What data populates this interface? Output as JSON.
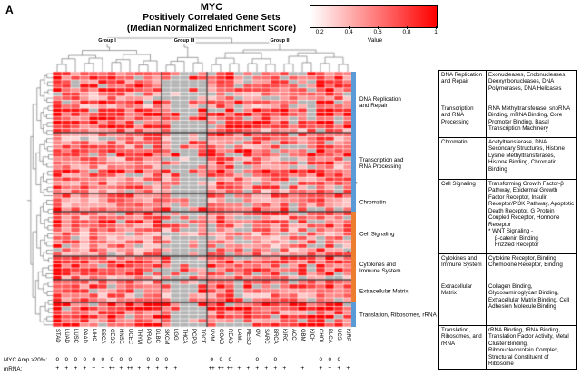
{
  "panel_label": "A",
  "chart_data": {
    "type": "heatmap",
    "title": "MYC",
    "subtitle": "Positively Correlated Gene Sets",
    "subtitle2": "(Median Normalized Enrichment Score)",
    "colorbar": {
      "label": "Value",
      "ticks": [
        "0.2",
        "0.4",
        "0.6",
        "0.8",
        "1"
      ],
      "tick_values": [
        0.2,
        0.4,
        0.6,
        0.8,
        1
      ],
      "low_color": "#FFFFFF",
      "high_color": "#FF0000",
      "missing_color": "#B5B5B5"
    },
    "columns": [
      "STAD",
      "LUAD",
      "LUSC",
      "PAAD",
      "LIHC",
      "ESCA",
      "CESC",
      "HNSC",
      "UCEC",
      "THYM",
      "PRAD",
      "DLBC",
      "SKCM",
      "LGG",
      "THCA",
      "PCPG",
      "TGCT",
      "UVM",
      "COAD",
      "READ",
      "LAML",
      "MESO",
      "OV",
      "SARC",
      "BRCA",
      "KIRC",
      "ACC",
      "GBM",
      "KICH",
      "CHOL",
      "BLCA",
      "UCS",
      "KIRP"
    ],
    "column_groups": [
      {
        "label": "Group I",
        "start": 0,
        "end": 11
      },
      {
        "label": "Group III",
        "start": 12,
        "end": 16
      },
      {
        "label": "Group II",
        "start": 17,
        "end": 32
      }
    ],
    "row_sections": [
      {
        "label": "DNA Replication and Repair",
        "display": "DNA Replication\nand Repair",
        "n_rows": 15,
        "side_color": "#5B9BD5"
      },
      {
        "label": "Transcription and RNA Processing",
        "display": "Transcription and\nRNA Processing",
        "n_rows": 15,
        "side_color": "#5B9BD5"
      },
      {
        "label": "Chromatin",
        "display": "Chromatin",
        "n_rows": 4,
        "side_color": "#5B9BD5"
      },
      {
        "label": "Cell Signaling",
        "display": "Cell Signaling",
        "n_rows": 11,
        "side_color": "#ED7D31"
      },
      {
        "label": "Cytokines and Immune System",
        "display": "Cytokines and\nImmune System",
        "n_rows": 6,
        "side_color": "#ED7D31"
      },
      {
        "label": "Extracellular Matrix",
        "display": "Extracellular Matrix",
        "n_rows": 5,
        "side_color": "#ED7D31"
      },
      {
        "label": "Translation, Ribosomes, rRNA",
        "display": "Translation, Ribosomes, rRNA",
        "n_rows": 6,
        "side_color": "#5B9BD5"
      }
    ],
    "annotation_rows": {
      "amp_label": "MYC Amp >20%:",
      "mrna_label": "mRNA:",
      "amp": [
        "o",
        "o",
        "o",
        "o",
        "o",
        "o",
        "o",
        "o",
        "o",
        "",
        "o",
        "o",
        "o",
        "",
        "",
        "",
        "",
        "o",
        "o",
        "o",
        "",
        "",
        "o",
        "",
        "o",
        "",
        "",
        "",
        "",
        "o",
        "o",
        "o",
        ""
      ],
      "mrna": [
        "+",
        "+",
        "+",
        "+",
        "+",
        "+",
        "++",
        "+",
        "++",
        "+",
        "+",
        "+",
        "+",
        "+",
        "",
        "",
        "",
        "++",
        "++",
        "++",
        "+",
        "+",
        "+",
        "+",
        "+",
        "+",
        "",
        "+",
        "",
        "+",
        "+",
        "+",
        "+"
      ]
    },
    "render_hints": {
      "seed": 11,
      "missing_default": 0.07,
      "missing_fraction": {
        "SKCM": 0.3,
        "LGG": 0.72,
        "THCA": 0.85,
        "PCPG": 0.72,
        "TGCT": 0.55,
        "THYM": 0.12,
        "UVM": 0.15,
        "LAML": 0.3,
        "MESO": 0.28,
        "OV": 0.12,
        "KIRC": 0.15,
        "ACC": 0.3,
        "GBM": 0.18,
        "KICH": 0.32,
        "UCS": 0.12
      },
      "col_intensity": {
        "STAD": 0.18,
        "READ": 0.08,
        "COAD": 0.06,
        "CHOL": 0.1,
        "BLCA": 0.06,
        "UVM": -0.05,
        "SKCM": -0.05
      },
      "sec_intensity": [
        0.05,
        0.02,
        0,
        -0.04,
        -0.02,
        0,
        0.08
      ]
    }
  },
  "footnote_marker": "*",
  "legend_table": {
    "rows": [
      {
        "category": "DNA Replication and Repair",
        "description": "Exonucleases, Endonucleases, Deoxyribonucleases, DNA Polymerases, DNA Helicases"
      },
      {
        "category": "Transcription and RNA Processing",
        "description": "RNA Methyltransferase, snoRNA Binding, mRNA Binding, Core Promoter Binding, Basal Transcription Machinery"
      },
      {
        "category": "Chromatin",
        "description": "Acetyltransferase, DNA Secondary Structures, Histone Lysine Methyltransferases, Histone Binding, Chromatin Binding"
      },
      {
        "category": "Cell Signaling",
        "description": "Transforming Growth Factor-β Pathway, Epidermal Growth Factor Receptor, Insulin Receptor/PI3K Pathway, Apoptotic Death Receptor, G Protein Coupled Receptor, Hormone Receptor\n* WNT Signaling -\n    β-catenin Binding\n    Frizzled Receptor"
      },
      {
        "category": "Cytokines and Immune System",
        "description": "Cytokine Receptor, Binding Chemokine Receptor, Binding"
      },
      {
        "category": "Extracellular Matrix",
        "description": "Collagen Binding, Glycosaminoglycan Binding, Extracellular Matrix Binding, Cell Adhesion Molecule Binding"
      },
      {
        "category": "Translation, Ribosomes, and rRNA",
        "description": "rRNA Binding, tRNA Binding, Translation Factor Activity, Metal Cluster Binding, Ribonucleoprotein Complex, Structural Constituent of Ribosome"
      }
    ]
  }
}
